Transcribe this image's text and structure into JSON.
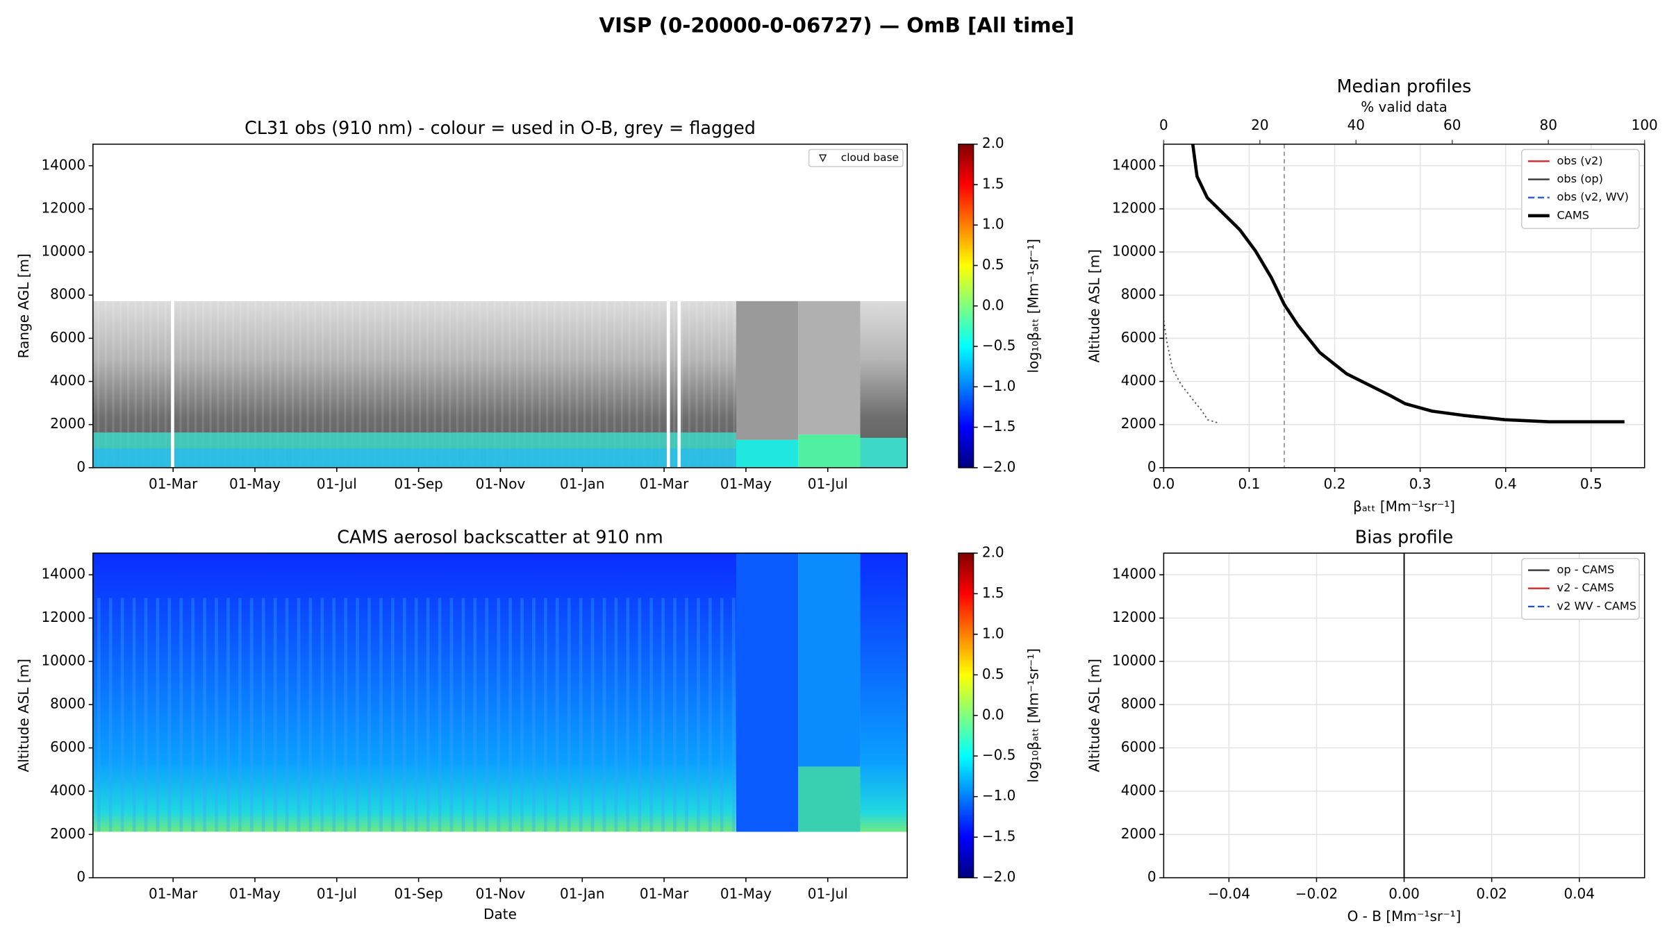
{
  "title": "VISP (0-20000-0-06727) — OmB [All time]",
  "chart_data": [
    {
      "type": "heatmap",
      "title": "CL31 obs (910 nm) - colour = used in O-B, grey = flagged",
      "ylabel": "Range AGL [m]",
      "ylim": [
        0,
        15000
      ],
      "yticks": [
        0,
        2000,
        4000,
        6000,
        8000,
        10000,
        12000,
        14000
      ],
      "xticks": [
        "01-Mar",
        "01-May",
        "01-Jul",
        "01-Sep",
        "01-Nov",
        "01-Jan",
        "01-Mar",
        "01-May",
        "01-Jul"
      ],
      "legend": {
        "entries": [
          "cloud base"
        ],
        "position": "upper right"
      },
      "colorbar": {
        "label": "log₁₀βₐₜₜ [Mm⁻¹sr⁻¹]",
        "lim": [
          -2,
          2
        ],
        "ticks": [
          {
            "value": -2,
            "label": "−2.0"
          },
          {
            "value": -1.5,
            "label": "−1.5"
          },
          {
            "value": -1,
            "label": "−1.0"
          },
          {
            "value": -0.5,
            "label": "−0.5"
          },
          {
            "value": 0,
            "label": "0.0"
          },
          0.5,
          {
            "value": 1,
            "label": "1.0"
          },
          1.5,
          {
            "value": 2,
            "label": "2.0"
          }
        ]
      }
    },
    {
      "type": "heatmap",
      "title": "CAMS aerosol backscatter at 910 nm",
      "xlabel": "Date",
      "ylabel": "Altitude ASL [m]",
      "ylim": [
        0,
        15000
      ],
      "yticks": [
        0,
        2000,
        4000,
        6000,
        8000,
        10000,
        12000,
        14000
      ],
      "xticks": [
        "01-Mar",
        "01-May",
        "01-Jul",
        "01-Sep",
        "01-Nov",
        "01-Jan",
        "01-Mar",
        "01-May",
        "01-Jul"
      ],
      "colorbar": {
        "label": "log₁₀βₐₜₜ [Mm⁻¹sr⁻¹]",
        "lim": [
          -2,
          2
        ],
        "ticks": [
          {
            "value": -2,
            "label": "−2.0"
          },
          {
            "value": -1.5,
            "label": "−1.5"
          },
          {
            "value": -1,
            "label": "−1.0"
          },
          {
            "value": -0.5,
            "label": "−0.5"
          },
          {
            "value": 0,
            "label": "0.0"
          },
          0.5,
          {
            "value": 1,
            "label": "1.0"
          },
          1.5,
          {
            "value": 2,
            "label": "2.0"
          }
        ]
      }
    },
    {
      "type": "profile",
      "title": "Median profiles",
      "xlabel": "βₐₜₜ [Mm⁻¹sr⁻¹]",
      "ylabel": "Altitude ASL [m]",
      "x2label": "% valid data",
      "xlim": [
        0,
        0.5625
      ],
      "xticks": [
        {
          "value": 0,
          "label": "0.0"
        },
        0.1,
        0.2,
        0.3,
        0.4,
        0.5
      ],
      "x2lim": [
        0,
        100
      ],
      "x2ticks": [
        0,
        20,
        40,
        60,
        80,
        100
      ],
      "ylim": [
        0,
        15000
      ],
      "yticks": [
        0,
        2000,
        4000,
        6000,
        8000,
        10000,
        12000,
        14000
      ],
      "grid": true,
      "legend": "upper right",
      "vline": {
        "value": 0.141,
        "color": "#999999",
        "style": "dashed"
      },
      "series": [
        {
          "name": "obs (v2)",
          "color": "#d62728",
          "style": "solid",
          "width": 1.5,
          "values": [],
          "altitudes": []
        },
        {
          "name": "obs (op)",
          "color": "#333333",
          "style": "solid",
          "width": 1.5,
          "values": [],
          "altitudes": []
        },
        {
          "name": "obs (v2, WV)",
          "color": "#1f4fd8",
          "style": "dashed",
          "width": 1.5,
          "values": [],
          "altitudes": []
        },
        {
          "name": "CAMS",
          "color": "#000000",
          "style": "solid",
          "width": 3,
          "values": [
            0.034,
            0.039,
            0.051,
            0.07,
            0.089,
            0.1075,
            0.126,
            0.141,
            0.1575,
            0.1825,
            0.214,
            0.264,
            0.2825,
            0.314,
            0.351,
            0.399,
            0.451,
            0.539
          ],
          "altitudes": [
            15000,
            13505,
            12516,
            11774,
            11032,
            10042,
            8805,
            7569,
            6580,
            5343,
            4353,
            3364,
            2968,
            2622,
            2424,
            2226,
            2127,
            2127
          ]
        },
        {
          "axis": "x2",
          "color": "#555555",
          "style": "dotted",
          "width": 1.2,
          "values": [
            0,
            0.67,
            1.8,
            3.6,
            6.2,
            8.0,
            9.1,
            11.3
          ],
          "altitudes": [
            6826,
            5837,
            4600,
            3859,
            3116,
            2622,
            2226,
            2078
          ]
        }
      ]
    },
    {
      "type": "profile",
      "title": "Bias profile",
      "xlabel": "O - B [Mm⁻¹sr⁻¹]",
      "ylabel": "Altitude ASL [m]",
      "xlim": [
        -0.0549,
        0.0549
      ],
      "xticks": [
        {
          "value": -0.04,
          "label": "−0.04"
        },
        {
          "value": -0.02,
          "label": "−0.02"
        },
        {
          "value": 0,
          "label": "0.00"
        },
        0.02,
        0.04
      ],
      "ylim": [
        0,
        15000
      ],
      "yticks": [
        0,
        2000,
        4000,
        6000,
        8000,
        10000,
        12000,
        14000
      ],
      "grid": true,
      "legend": "upper right",
      "vline": {
        "value": 0,
        "color": "#000000",
        "style": "solid"
      },
      "series": [
        {
          "name": "op - CAMS",
          "color": "#333333",
          "style": "solid",
          "width": 1.5,
          "values": [],
          "altitudes": []
        },
        {
          "name": "v2 - CAMS",
          "color": "#d62728",
          "style": "solid",
          "width": 1.5,
          "values": [],
          "altitudes": []
        },
        {
          "name": "v2 WV - CAMS",
          "color": "#1f4fd8",
          "style": "dashed",
          "width": 1.5,
          "values": [],
          "altitudes": []
        }
      ]
    }
  ]
}
